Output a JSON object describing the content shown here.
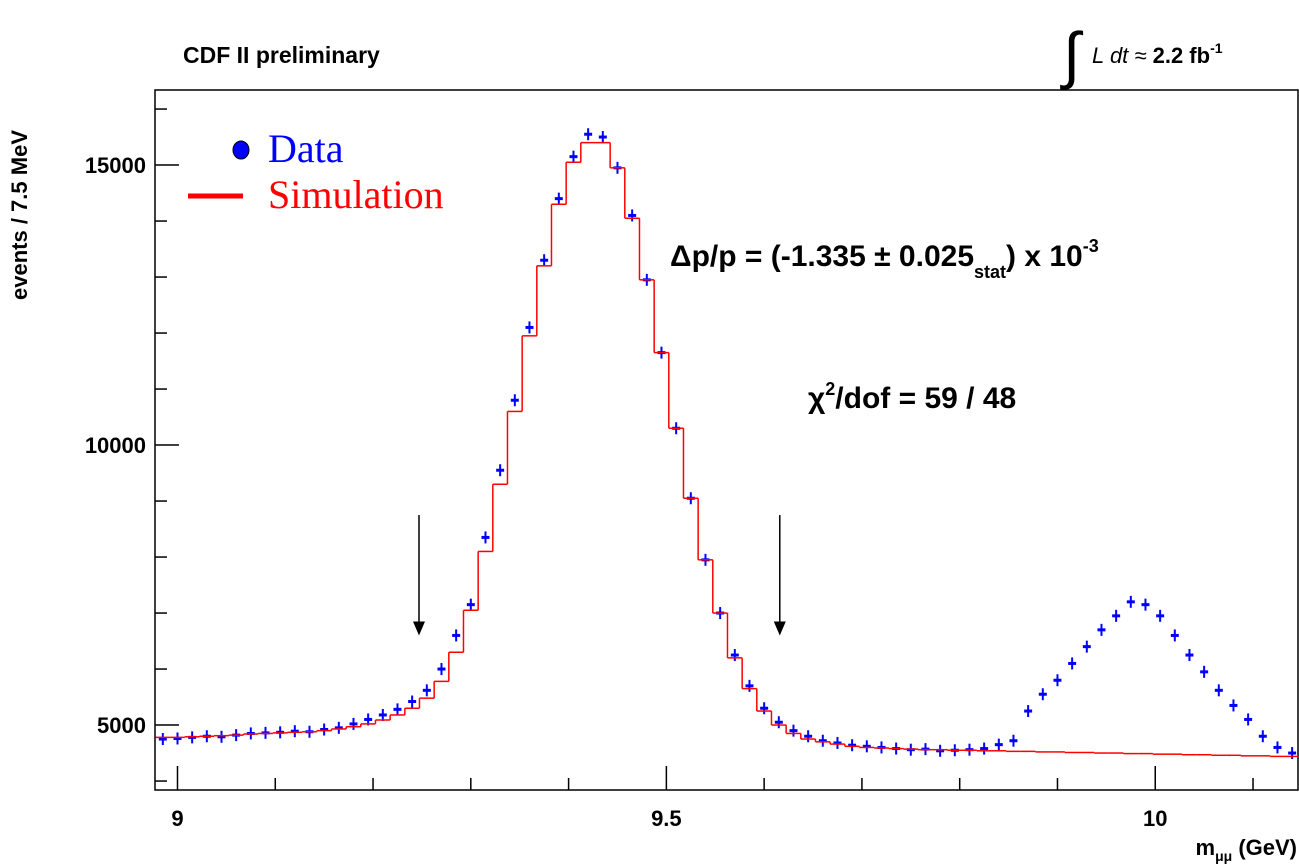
{
  "chart_data": {
    "type": "line",
    "title": "CDF II preliminary",
    "luminosity": {
      "text": "L dt ≈",
      "value": "2.2 fb",
      "exponent": "-1"
    },
    "fit_result": {
      "prefix": "Δp/p = (-1.335 ± 0.025",
      "subscript": "stat",
      "suffix": ") x 10",
      "exponent": "-3"
    },
    "chi2": {
      "symbol": "χ",
      "exponent": "2",
      "text": "/dof = 59 / 48"
    },
    "y_label": "events / 7.5 MeV",
    "x_label": {
      "text": "m",
      "subscript": "μμ",
      "suffix": " (GeV)"
    },
    "xlim": [
      8.977,
      10.146
    ],
    "ylim": [
      3840,
      16340
    ],
    "xticks": [
      9,
      9.5,
      10
    ],
    "xminor_ticks": [
      9.1,
      9.2,
      9.3,
      9.4,
      9.6,
      9.7,
      9.8,
      9.9,
      10.1
    ],
    "yticks": [
      5000,
      10000,
      15000
    ],
    "yminor_ticks": [
      4000,
      6000,
      7000,
      8000,
      9000,
      11000,
      12000,
      13000,
      14000,
      16000
    ],
    "legend": "upper left",
    "x": [
      8.985,
      9.0,
      9.015,
      9.03,
      9.045,
      9.06,
      9.075,
      9.09,
      9.105,
      9.12,
      9.135,
      9.15,
      9.165,
      9.18,
      9.195,
      9.21,
      9.225,
      9.24,
      9.255,
      9.27,
      9.285,
      9.3,
      9.315,
      9.33,
      9.345,
      9.36,
      9.375,
      9.39,
      9.405,
      9.42,
      9.435,
      9.45,
      9.465,
      9.48,
      9.495,
      9.51,
      9.525,
      9.54,
      9.555,
      9.57,
      9.585,
      9.6,
      9.615,
      9.63,
      9.645,
      9.66,
      9.675,
      9.69,
      9.705,
      9.72,
      9.735,
      9.75,
      9.765,
      9.78,
      9.795,
      9.81,
      9.825,
      9.84,
      9.855,
      9.87,
      9.885,
      9.9,
      9.915,
      9.93,
      9.945,
      9.96,
      9.975,
      9.99,
      10.005,
      10.02,
      10.035,
      10.05,
      10.065,
      10.08,
      10.095,
      10.11,
      10.125,
      10.14
    ],
    "series": [
      {
        "name": "Data",
        "style": "points",
        "color": "#0000ff",
        "values": [
          4750,
          4760,
          4780,
          4800,
          4790,
          4820,
          4850,
          4860,
          4870,
          4890,
          4880,
          4920,
          4950,
          5020,
          5100,
          5180,
          5280,
          5420,
          5620,
          6000,
          6600,
          7150,
          8350,
          9550,
          10800,
          12100,
          13300,
          14400,
          15150,
          15550,
          15500,
          14950,
          14100,
          12950,
          11650,
          10300,
          9050,
          7950,
          7000,
          6250,
          5700,
          5300,
          5050,
          4900,
          4800,
          4720,
          4680,
          4640,
          4620,
          4600,
          4580,
          4560,
          4570,
          4540,
          4550,
          4560,
          4580,
          4650,
          4720,
          5250,
          5550,
          5800,
          6100,
          6400,
          6700,
          6950,
          7200,
          7150,
          6950,
          6600,
          6250,
          5950,
          5620,
          5350,
          5100,
          4800,
          4600,
          4500
        ]
      },
      {
        "name": "Simulation",
        "style": "step",
        "color": "#ff0000",
        "values": [
          4780,
          4780,
          4790,
          4800,
          4810,
          4820,
          4840,
          4850,
          4860,
          4870,
          4880,
          4900,
          4930,
          4970,
          5020,
          5090,
          5180,
          5300,
          5480,
          5780,
          6300,
          7050,
          8100,
          9300,
          10600,
          11950,
          13200,
          14300,
          15050,
          15400,
          15400,
          14950,
          14050,
          12950,
          11650,
          10300,
          9050,
          7950,
          7000,
          6200,
          5650,
          5250,
          5000,
          4850,
          4750,
          4700,
          4660,
          4620,
          4600,
          4590,
          4580,
          4570,
          4560,
          4560,
          4550,
          4550,
          4540,
          4540,
          4530,
          4530,
          4520,
          4520,
          4510,
          4510,
          4500,
          4500,
          4490,
          4490,
          4480,
          4480,
          4470,
          4470,
          4460,
          4460,
          4450,
          4450,
          4440,
          4440
        ]
      }
    ],
    "arrows": [
      {
        "x": 9.247,
        "y_from": 8750,
        "y_to": 6600
      },
      {
        "x": 9.616,
        "y_from": 8750,
        "y_to": 6600
      }
    ]
  }
}
